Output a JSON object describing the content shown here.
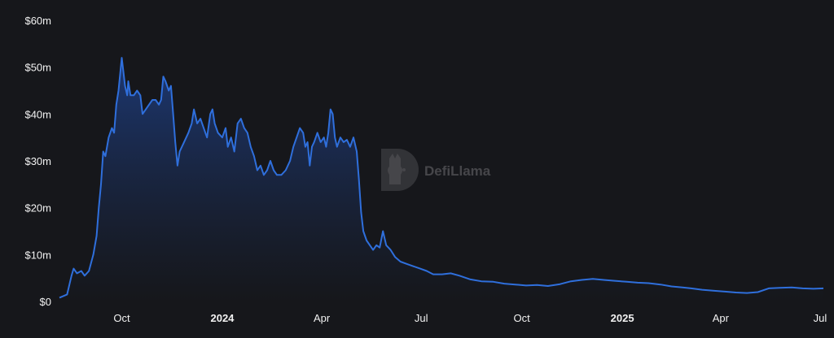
{
  "colors": {
    "background": "#16171b",
    "line": "#2f6fdc",
    "area_top": "#1d3a78",
    "area_bottom": "#16171b",
    "text": "#f2f2f2"
  },
  "watermark": {
    "text": "DefiLlama",
    "icon": "llama-logo-icon"
  },
  "chart_data": {
    "type": "area",
    "title": "",
    "xlabel": "",
    "ylabel": "",
    "ylim": [
      0,
      60000000
    ],
    "grid": false,
    "legend": "none",
    "y_ticks": [
      {
        "value": 0,
        "label": "$0"
      },
      {
        "value": 10000000,
        "label": "$10m"
      },
      {
        "value": 20000000,
        "label": "$20m"
      },
      {
        "value": 30000000,
        "label": "$30m"
      },
      {
        "value": 40000000,
        "label": "$40m"
      },
      {
        "value": 50000000,
        "label": "$50m"
      },
      {
        "value": 60000000,
        "label": "$60m"
      }
    ],
    "x_ticks": [
      {
        "date": "2023-10-01",
        "label": "Oct",
        "bold": false
      },
      {
        "date": "2024-01-01",
        "label": "2024",
        "bold": true
      },
      {
        "date": "2024-04-01",
        "label": "Apr",
        "bold": false
      },
      {
        "date": "2024-07-01",
        "label": "Jul",
        "bold": false
      },
      {
        "date": "2024-10-01",
        "label": "Oct",
        "bold": false
      },
      {
        "date": "2025-01-01",
        "label": "2025",
        "bold": true
      },
      {
        "date": "2025-04-01",
        "label": "Apr",
        "bold": false
      },
      {
        "date": "2025-07-01",
        "label": "Jul",
        "bold": false
      }
    ],
    "xlim": [
      "2023-08-05",
      "2025-07-04"
    ],
    "series": [
      {
        "points": [
          [
            "2023-08-05",
            0.8
          ],
          [
            "2023-08-12",
            1.5
          ],
          [
            "2023-08-16",
            5.5
          ],
          [
            "2023-08-18",
            7.0
          ],
          [
            "2023-08-21",
            6.0
          ],
          [
            "2023-08-25",
            6.5
          ],
          [
            "2023-08-28",
            5.5
          ],
          [
            "2023-09-01",
            6.5
          ],
          [
            "2023-09-05",
            10.0
          ],
          [
            "2023-09-08",
            14.0
          ],
          [
            "2023-09-10",
            20.0
          ],
          [
            "2023-09-12",
            25.0
          ],
          [
            "2023-09-14",
            32.0
          ],
          [
            "2023-09-16",
            31.0
          ],
          [
            "2023-09-19",
            35.0
          ],
          [
            "2023-09-22",
            37.0
          ],
          [
            "2023-09-24",
            36.0
          ],
          [
            "2023-09-26",
            42.0
          ],
          [
            "2023-09-28",
            45.0
          ],
          [
            "2023-10-01",
            52.0
          ],
          [
            "2023-10-03",
            48.0
          ],
          [
            "2023-10-04",
            46.0
          ],
          [
            "2023-10-06",
            44.0
          ],
          [
            "2023-10-07",
            47.0
          ],
          [
            "2023-10-09",
            44.0
          ],
          [
            "2023-10-12",
            44.0
          ],
          [
            "2023-10-15",
            45.0
          ],
          [
            "2023-10-18",
            44.0
          ],
          [
            "2023-10-20",
            40.0
          ],
          [
            "2023-10-23",
            41.0
          ],
          [
            "2023-10-26",
            42.0
          ],
          [
            "2023-10-29",
            43.0
          ],
          [
            "2023-11-01",
            43.0
          ],
          [
            "2023-11-04",
            42.0
          ],
          [
            "2023-11-06",
            43.0
          ],
          [
            "2023-11-08",
            48.0
          ],
          [
            "2023-11-10",
            47.0
          ],
          [
            "2023-11-13",
            45.0
          ],
          [
            "2023-11-15",
            46.0
          ],
          [
            "2023-11-17",
            40.0
          ],
          [
            "2023-11-19",
            34.0
          ],
          [
            "2023-11-21",
            29.0
          ],
          [
            "2023-11-23",
            32.0
          ],
          [
            "2023-11-27",
            34.0
          ],
          [
            "2023-12-01",
            36.0
          ],
          [
            "2023-12-04",
            38.0
          ],
          [
            "2023-12-06",
            41.0
          ],
          [
            "2023-12-09",
            38.0
          ],
          [
            "2023-12-12",
            39.0
          ],
          [
            "2023-12-15",
            37.0
          ],
          [
            "2023-12-18",
            35.0
          ],
          [
            "2023-12-21",
            40.0
          ],
          [
            "2023-12-23",
            41.0
          ],
          [
            "2023-12-25",
            38.0
          ],
          [
            "2023-12-28",
            36.0
          ],
          [
            "2024-01-01",
            35.0
          ],
          [
            "2024-01-04",
            37.0
          ],
          [
            "2024-01-06",
            33.0
          ],
          [
            "2024-01-09",
            35.0
          ],
          [
            "2024-01-12",
            32.0
          ],
          [
            "2024-01-15",
            38.0
          ],
          [
            "2024-01-18",
            39.0
          ],
          [
            "2024-01-21",
            37.0
          ],
          [
            "2024-01-24",
            36.0
          ],
          [
            "2024-01-27",
            33.0
          ],
          [
            "2024-01-30",
            31.0
          ],
          [
            "2024-02-02",
            28.0
          ],
          [
            "2024-02-05",
            29.0
          ],
          [
            "2024-02-08",
            27.0
          ],
          [
            "2024-02-11",
            28.0
          ],
          [
            "2024-02-14",
            30.0
          ],
          [
            "2024-02-17",
            28.0
          ],
          [
            "2024-02-20",
            27.0
          ],
          [
            "2024-02-24",
            27.0
          ],
          [
            "2024-02-28",
            28.0
          ],
          [
            "2024-03-03",
            30.0
          ],
          [
            "2024-03-06",
            33.0
          ],
          [
            "2024-03-09",
            35.0
          ],
          [
            "2024-03-12",
            37.0
          ],
          [
            "2024-03-15",
            36.0
          ],
          [
            "2024-03-17",
            33.0
          ],
          [
            "2024-03-19",
            34.0
          ],
          [
            "2024-03-21",
            29.0
          ],
          [
            "2024-03-23",
            33.0
          ],
          [
            "2024-03-25",
            34.0
          ],
          [
            "2024-03-28",
            36.0
          ],
          [
            "2024-03-31",
            34.0
          ],
          [
            "2024-04-03",
            35.0
          ],
          [
            "2024-04-05",
            33.0
          ],
          [
            "2024-04-07",
            36.0
          ],
          [
            "2024-04-09",
            41.0
          ],
          [
            "2024-04-11",
            40.0
          ],
          [
            "2024-04-13",
            35.0
          ],
          [
            "2024-04-15",
            33.0
          ],
          [
            "2024-04-18",
            35.0
          ],
          [
            "2024-04-21",
            34.0
          ],
          [
            "2024-04-24",
            34.5
          ],
          [
            "2024-04-27",
            33.0
          ],
          [
            "2024-04-30",
            35.0
          ],
          [
            "2024-05-03",
            32.0
          ],
          [
            "2024-05-05",
            26.0
          ],
          [
            "2024-05-07",
            19.0
          ],
          [
            "2024-05-09",
            15.0
          ],
          [
            "2024-05-12",
            13.0
          ],
          [
            "2024-05-15",
            12.0
          ],
          [
            "2024-05-18",
            11.0
          ],
          [
            "2024-05-21",
            12.0
          ],
          [
            "2024-05-24",
            11.5
          ],
          [
            "2024-05-27",
            15.0
          ],
          [
            "2024-05-30",
            12.0
          ],
          [
            "2024-06-03",
            11.0
          ],
          [
            "2024-06-07",
            9.5
          ],
          [
            "2024-06-12",
            8.5
          ],
          [
            "2024-06-18",
            8.0
          ],
          [
            "2024-06-24",
            7.5
          ],
          [
            "2024-06-30",
            7.0
          ],
          [
            "2024-07-06",
            6.5
          ],
          [
            "2024-07-12",
            5.8
          ],
          [
            "2024-07-20",
            5.8
          ],
          [
            "2024-07-28",
            6.0
          ],
          [
            "2024-08-05",
            5.5
          ],
          [
            "2024-08-15",
            4.7
          ],
          [
            "2024-08-25",
            4.3
          ],
          [
            "2024-09-05",
            4.2
          ],
          [
            "2024-09-15",
            3.8
          ],
          [
            "2024-09-25",
            3.6
          ],
          [
            "2024-10-05",
            3.4
          ],
          [
            "2024-10-15",
            3.5
          ],
          [
            "2024-10-25",
            3.3
          ],
          [
            "2024-11-05",
            3.7
          ],
          [
            "2024-11-15",
            4.3
          ],
          [
            "2024-11-25",
            4.6
          ],
          [
            "2024-12-05",
            4.8
          ],
          [
            "2024-12-15",
            4.6
          ],
          [
            "2024-12-25",
            4.4
          ],
          [
            "2025-01-05",
            4.2
          ],
          [
            "2025-01-15",
            4.0
          ],
          [
            "2025-01-25",
            3.9
          ],
          [
            "2025-02-05",
            3.6
          ],
          [
            "2025-02-15",
            3.2
          ],
          [
            "2025-02-25",
            3.0
          ],
          [
            "2025-03-05",
            2.8
          ],
          [
            "2025-03-15",
            2.5
          ],
          [
            "2025-03-25",
            2.3
          ],
          [
            "2025-04-05",
            2.1
          ],
          [
            "2025-04-15",
            1.9
          ],
          [
            "2025-04-25",
            1.8
          ],
          [
            "2025-05-05",
            2.0
          ],
          [
            "2025-05-15",
            2.8
          ],
          [
            "2025-05-25",
            2.9
          ],
          [
            "2025-06-05",
            3.0
          ],
          [
            "2025-06-15",
            2.8
          ],
          [
            "2025-06-25",
            2.7
          ],
          [
            "2025-07-04",
            2.8
          ]
        ]
      }
    ]
  }
}
